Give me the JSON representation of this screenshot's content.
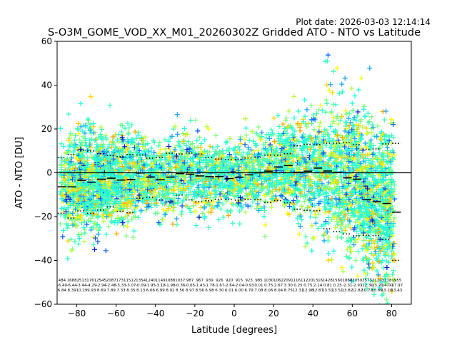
{
  "chart_data": {
    "type": "scatter",
    "plot_date": "Plot date: 2026-03-03 12:14:14",
    "title": "S-O3M_GOME_VOD_XX_M01_20260302Z Gridded ATO - NTO vs Latitude",
    "xlabel": "Latitude [degrees]",
    "ylabel": "ATO - NTO [DU]",
    "xlim": [
      -90,
      90
    ],
    "ylim": [
      -60,
      60
    ],
    "xticks": [
      -80,
      -60,
      -40,
      -20,
      0,
      20,
      40,
      60,
      80
    ],
    "yticks": [
      -60,
      -40,
      -20,
      0,
      20,
      40,
      60
    ],
    "x_tick_labels": [
      "−80",
      "−60",
      "−40",
      "−20",
      "0",
      "20",
      "40",
      "60",
      "80"
    ],
    "y_tick_labels": [
      "−60",
      "−40",
      "−20",
      "0",
      "20",
      "40",
      "60"
    ],
    "grid": false,
    "legend": "none",
    "marker": "plus",
    "colors": {
      "axis": "#000000",
      "background": "#ffffff",
      "point_palette": [
        "#3fffb8",
        "#7dff7a",
        "#b8ff3f",
        "#f5ff0a",
        "#ffd400",
        "#ffaa00",
        "#1ea7ff",
        "#0b5fff",
        "#0a1cc8",
        "#25ffd6"
      ]
    },
    "zero_line": 0,
    "bin_latitudes": [
      -87.5,
      -82.5,
      -77.5,
      -72.5,
      -67.5,
      -62.5,
      -57.5,
      -52.5,
      -47.5,
      -42.5,
      -37.5,
      -32.5,
      -27.5,
      -22.5,
      -17.5,
      -12.5,
      -7.5,
      -2.5,
      2.5,
      7.5,
      12.5,
      17.5,
      22.5,
      27.5,
      32.5,
      37.5,
      42.5,
      47.5,
      52.5,
      57.5,
      62.5,
      67.5,
      72.5,
      77.5,
      82.5
    ],
    "bin_mean": [
      -6.4,
      -6.44,
      -3.44,
      -4.29,
      -2.94,
      -2.48,
      -3.33,
      -3.07,
      -0.09,
      -1.95,
      -3.18,
      -1.98,
      -0.36,
      -0.65,
      -1.43,
      -1.78,
      -1.67,
      -2.64,
      -2.04,
      -0.93,
      0.01,
      0.75,
      2.67,
      3.3,
      0.25,
      0.75,
      2.14,
      0.81,
      0.25,
      -2.31,
      -2.93,
      -12.3,
      -13.2,
      -14.0,
      -17.97
    ],
    "bin_mean_plus_sd": [
      6.84,
      8.39,
      10.29,
      9.93,
      8.69,
      7.89,
      7.33,
      8.35,
      8.13,
      6.66,
      6.99,
      8.91,
      8.56,
      8.97,
      8.56,
      6.98,
      6.3,
      6.01,
      6.0,
      6.79,
      7.08,
      8.06,
      8.04,
      8.75,
      12.31,
      12.98,
      12.87,
      13.51,
      13.51,
      13.82,
      12.82,
      10.72,
      10.89,
      13.2,
      13.43
    ],
    "bin_minus_sd": [
      -18.5,
      -20.7,
      -17.4,
      -18.5,
      -17.0,
      -15.6,
      -17.6,
      -18.2,
      -11.6,
      -11.2,
      -12.4,
      -13.3,
      -10.2,
      -12.4,
      -13.2,
      -12.8,
      -12.1,
      -12.1,
      -12.5,
      -12.2,
      -12.3,
      -13.6,
      -12.7,
      -13.7,
      -16.6,
      -17.1,
      -17.3,
      -25.6,
      -26.9,
      -27.9,
      -28.8,
      -28.6,
      -28.7,
      -30.4,
      -40.0
    ],
    "bin_counts": [
      "484",
      "1688",
      "2513",
      "1761",
      "2545",
      "2087",
      "1731",
      "1512",
      "1354",
      "1240",
      "1149",
      "1088",
      "1037",
      "987",
      "967",
      "939",
      "926",
      "920",
      "915",
      "923",
      "985",
      "1030",
      "1062",
      "2091",
      "1161",
      "1220",
      "1316",
      "1428",
      "1560",
      "1880",
      "2050",
      "2573",
      "2120",
      "3118",
      "1955"
    ],
    "bin_mean_labels": [
      "-6.40",
      "-6.44",
      "-3.44",
      "-4.29",
      "-2.94",
      "-2.48",
      "-3.33",
      "-3.07",
      "-0.09",
      "-1.95",
      "-3.18",
      "-1.98",
      "-0.36",
      "-0.65",
      "-1.43",
      "-1.78",
      "-1.67",
      "-2.64",
      "-2.04",
      "-0.93",
      "0.01",
      "0.75",
      "2.67",
      "3.30",
      "0.25",
      "0.75",
      "2.14",
      "0.81",
      "0.25",
      "-2.31",
      "-2.93",
      "-12.30",
      "-13.20",
      "-14.00",
      "-17.97"
    ],
    "bin_sd_labels": [
      "6.84",
      "8.39",
      "10.29",
      "9.93",
      "8.69",
      "7.89",
      "7.33",
      "8.35",
      "8.13",
      "6.66",
      "6.99",
      "8.91",
      "8.56",
      "8.97",
      "8.56",
      "6.98",
      "6.30",
      "6.01",
      "6.00",
      "6.79",
      "7.08",
      "8.06",
      "8.04",
      "8.75",
      "12.31",
      "12.98",
      "12.87",
      "13.51",
      "13.51",
      "13.82",
      "12.82",
      "10.72",
      "10.89",
      "13.20",
      "13.43"
    ]
  }
}
